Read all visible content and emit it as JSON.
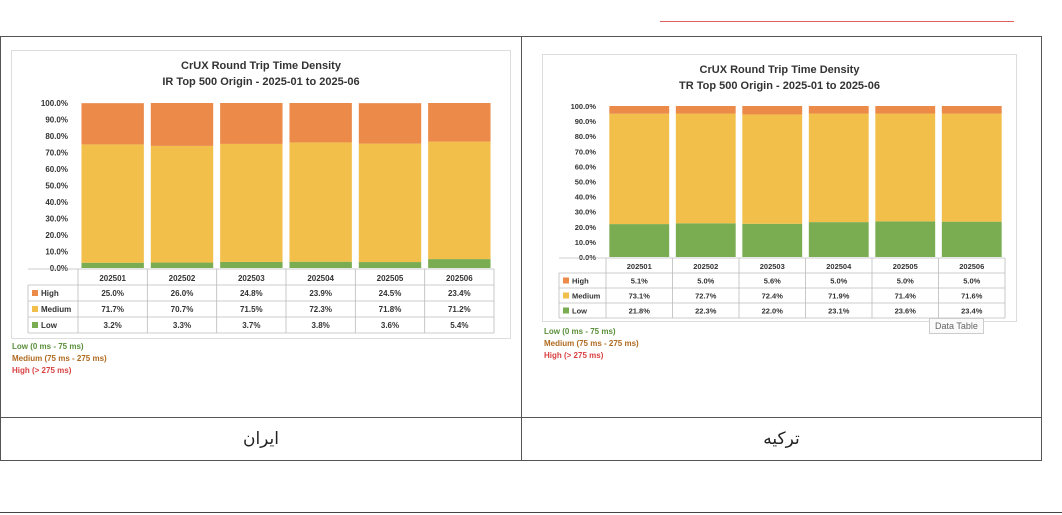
{
  "chart_data": [
    {
      "type": "bar",
      "stacked": true,
      "title": "CrUX Round Trip Time Density",
      "subtitle": "IR Top 500 Origin - 2025-01 to 2025-06",
      "categories": [
        "202501",
        "202502",
        "202503",
        "202504",
        "202505",
        "202506"
      ],
      "yticks": [
        "0.0%",
        "10.0%",
        "20.0%",
        "30.0%",
        "40.0%",
        "50.0%",
        "60.0%",
        "70.0%",
        "80.0%",
        "90.0%",
        "100.0%"
      ],
      "ylim": [
        0,
        100
      ],
      "series": [
        {
          "name": "Low",
          "color": "#7aad52",
          "values": [
            3.2,
            3.3,
            3.7,
            3.8,
            3.6,
            5.4
          ],
          "labels": [
            "3.2%",
            "3.3%",
            "3.7%",
            "3.8%",
            "3.6%",
            "5.4%"
          ]
        },
        {
          "name": "Medium",
          "color": "#f2c04a",
          "values": [
            71.7,
            70.7,
            71.5,
            72.3,
            71.8,
            71.2
          ],
          "labels": [
            "71.7%",
            "70.7%",
            "71.5%",
            "72.3%",
            "71.8%",
            "71.2%"
          ]
        },
        {
          "name": "High",
          "color": "#ec8a4a",
          "values": [
            25.0,
            26.0,
            24.8,
            23.9,
            24.5,
            23.4
          ],
          "labels": [
            "25.0%",
            "26.0%",
            "24.8%",
            "23.9%",
            "24.5%",
            "23.4%"
          ]
        }
      ],
      "legend": [
        "Low (0 ms - 75 ms)",
        "Medium (75 ms - 275 ms)",
        "High (> 275 ms)"
      ]
    },
    {
      "type": "bar",
      "stacked": true,
      "title": "CrUX Round Trip Time Density",
      "subtitle": "TR Top 500 Origin - 2025-01 to 2025-06",
      "categories": [
        "202501",
        "202502",
        "202503",
        "202504",
        "202505",
        "202506"
      ],
      "yticks": [
        "0.0%",
        "10.0%",
        "20.0%",
        "30.0%",
        "40.0%",
        "50.0%",
        "60.0%",
        "70.0%",
        "80.0%",
        "90.0%",
        "100.0%"
      ],
      "ylim": [
        0,
        100
      ],
      "series": [
        {
          "name": "Low",
          "color": "#7aad52",
          "values": [
            21.8,
            22.3,
            22.0,
            23.1,
            23.6,
            23.4
          ],
          "labels": [
            "21.8%",
            "22.3%",
            "22.0%",
            "23.1%",
            "23.6%",
            "23.4%"
          ]
        },
        {
          "name": "Medium",
          "color": "#f2c04a",
          "values": [
            73.1,
            72.7,
            72.4,
            71.9,
            71.4,
            71.6
          ],
          "labels": [
            "73.1%",
            "72.7%",
            "72.4%",
            "71.9%",
            "71.4%",
            "71.6%"
          ]
        },
        {
          "name": "High",
          "color": "#ec8a4a",
          "values": [
            5.1,
            5.0,
            5.6,
            5.0,
            5.0,
            5.0
          ],
          "labels": [
            "5.1%",
            "5.0%",
            "5.6%",
            "5.0%",
            "5.0%",
            "5.0%"
          ]
        }
      ],
      "legend": [
        "Low (0 ms - 75 ms)",
        "Medium (75 ms - 275 ms)",
        "High (> 275 ms)"
      ],
      "tooltip": "Data Table"
    }
  ],
  "table": {
    "captions": [
      "ایران",
      "ترکیه"
    ]
  }
}
